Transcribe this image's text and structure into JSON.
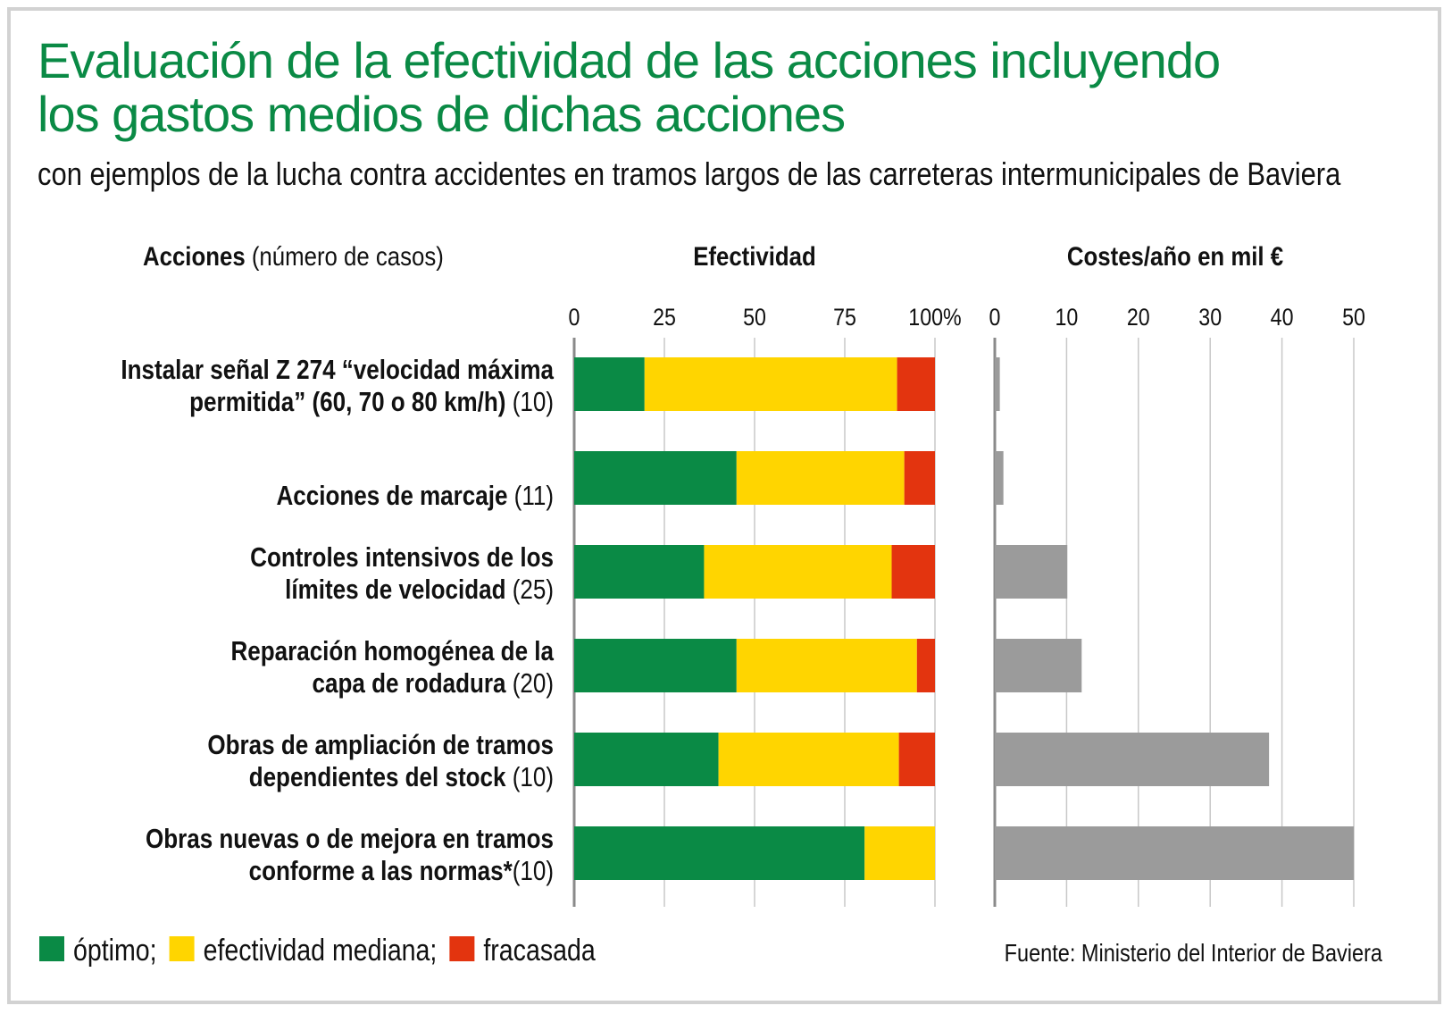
{
  "chart_data": [
    {
      "type": "bar",
      "stacked": true,
      "orientation": "horizontal",
      "title": "Efectividad",
      "xlim": [
        0,
        100
      ],
      "ticks": [
        "0",
        "25",
        "50",
        "75",
        "100%"
      ],
      "tick_values": [
        0,
        25,
        50,
        75,
        100
      ],
      "categories": [
        "Instalar señal Z 274 “velocidad máxima permitida” (60, 70 o 80 km/h) (10)",
        "Acciones de marcaje (11)",
        "Controles intensivos de los límites de velocidad (25)",
        "Reparación homogénea de la capa de rodadura (20)",
        "Obras de ampliación de tramos dependientes del stock (10)",
        "Obras nuevas o de mejora en tramos conforme a las normas*(10)"
      ],
      "series": [
        {
          "name": "óptimo",
          "color": "#0a8a45",
          "values": [
            19.5,
            45,
            36,
            45,
            40,
            80.5
          ]
        },
        {
          "name": "efectividad mediana",
          "color": "#ffd500",
          "values": [
            70,
            46.5,
            52,
            50,
            50,
            19.5
          ]
        },
        {
          "name": "fracasada",
          "color": "#e3340f",
          "values": [
            10.5,
            8.5,
            12,
            5,
            10,
            0
          ]
        }
      ]
    },
    {
      "type": "bar",
      "orientation": "horizontal",
      "title": "Costes/año en mil €",
      "xlim": [
        0,
        50
      ],
      "ticks": [
        "0",
        "10",
        "20",
        "30",
        "40",
        "50"
      ],
      "tick_values": [
        0,
        10,
        20,
        30,
        40,
        50
      ],
      "color": "#9b9b9b",
      "values": [
        0.7,
        1.2,
        10.1,
        12.1,
        38.2,
        50
      ]
    }
  ],
  "header": {
    "title_line1": "Evaluación de la efectividad de las acciones incluyendo",
    "title_line2": "los gastos medios de dichas acciones",
    "subtitle": "con ejemplos de la lucha contra accidentes en tramos largos de las carreteras intermunicipales de Baviera"
  },
  "columns": {
    "acciones_bold": "Acciones",
    "acciones_rest": " (número de casos)",
    "efectividad": "Efectividad",
    "costes": "Costes/año en mil €"
  },
  "rows": [
    {
      "line1": [
        {
          "t": "Instalar señal Z 274 “velocidad máxima",
          "b": true
        }
      ],
      "line2": [
        {
          "t": "permitida” (60, 70 o 80 km/h)",
          "b": true
        },
        {
          "t": " (10)",
          "b": false
        }
      ]
    },
    {
      "line1": [],
      "line2": [
        {
          "t": "Acciones de marcaje",
          "b": true
        },
        {
          "t": " (11)",
          "b": false
        }
      ]
    },
    {
      "line1": [
        {
          "t": "Controles intensivos de los",
          "b": true
        }
      ],
      "line2": [
        {
          "t": "límites de velocidad",
          "b": true
        },
        {
          "t": " (25)",
          "b": false
        }
      ]
    },
    {
      "line1": [
        {
          "t": "Reparación homogénea de la",
          "b": true
        }
      ],
      "line2": [
        {
          "t": "capa de rodadura",
          "b": true
        },
        {
          "t": " (20)",
          "b": false
        }
      ]
    },
    {
      "line1": [
        {
          "t": "Obras de ampliación de tramos",
          "b": true
        }
      ],
      "line2": [
        {
          "t": "dependientes del stock",
          "b": true
        },
        {
          "t": " (10)",
          "b": false
        }
      ]
    },
    {
      "line1": [
        {
          "t": "Obras nuevas o de mejora en tramos",
          "b": true
        }
      ],
      "line2": [
        {
          "t": "conforme a las normas*",
          "b": true
        },
        {
          "t": "(10)",
          "b": false
        }
      ]
    }
  ],
  "legend": [
    {
      "label": "óptimo;",
      "color": "#0a8a45"
    },
    {
      "label": "efectividad mediana;",
      "color": "#ffd500"
    },
    {
      "label": "fracasada",
      "color": "#e3340f"
    }
  ],
  "source": "Fuente: Ministerio del Interior de Baviera",
  "colors": {
    "title": "#0a8a45",
    "grid": "#c8c8c8",
    "axis": "#8a8a8a"
  }
}
